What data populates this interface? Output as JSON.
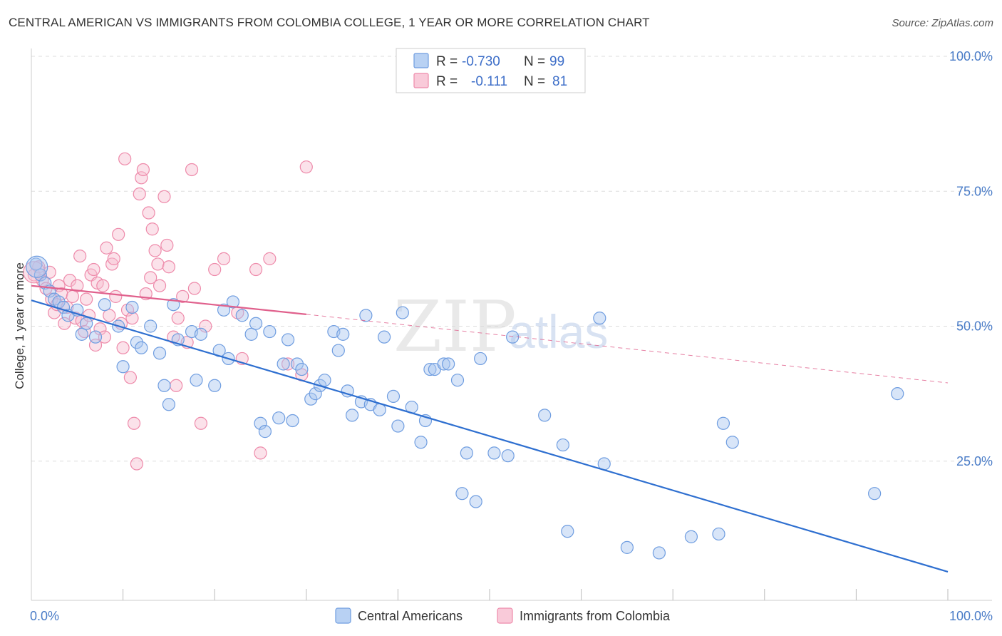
{
  "title": "CENTRAL AMERICAN VS IMMIGRANTS FROM COLOMBIA COLLEGE, 1 YEAR OR MORE CORRELATION CHART",
  "source": "Source: ZipAtlas.com",
  "watermark": {
    "zip": "ZIP",
    "atlas": "atlas"
  },
  "colors": {
    "blue": "#6f9de0",
    "blue_fill": "#a9c6f0",
    "blue_line": "#2e6fd0",
    "pink": "#ee8aaa",
    "pink_fill": "#f7bfd1",
    "pink_line": "#e0608c",
    "axis_label": "#4a7cc7",
    "grid": "#dddddd"
  },
  "legend_top": {
    "rows": [
      {
        "r_label": "R =",
        "r_value": "-0.730",
        "n_label": "N =",
        "n_value": "99",
        "series": "blue"
      },
      {
        "r_label": "R =",
        "r_value": "-0.111",
        "n_label": "N =",
        "n_value": "81",
        "series": "pink"
      }
    ]
  },
  "legend_bottom": [
    {
      "label": "Central Americans",
      "series": "blue"
    },
    {
      "label": "Immigrants from Colombia",
      "series": "pink"
    }
  ],
  "chart_data": {
    "type": "scatter",
    "title": "CENTRAL AMERICAN VS IMMIGRANTS FROM COLOMBIA COLLEGE, 1 YEAR OR MORE CORRELATION CHART",
    "xlabel": "",
    "ylabel": "College, 1 year or more",
    "xlim": [
      0,
      100
    ],
    "ylim": [
      0,
      105
    ],
    "x_tick_labels": [
      "0.0%",
      "100.0%"
    ],
    "y_tick_labels": [
      "25.0%",
      "50.0%",
      "75.0%",
      "100.0%"
    ],
    "y_ticks": [
      25,
      50,
      75,
      100
    ],
    "grid": true,
    "legend_position": "top-center",
    "series": [
      {
        "name": "Central Americans",
        "color": "blue",
        "r": -0.73,
        "n": 99,
        "trend": {
          "x": [
            0,
            100
          ],
          "y": [
            54.8,
            4.5
          ]
        },
        "points": [
          [
            0.5,
            61.5
          ],
          [
            1.0,
            59.5
          ],
          [
            1.5,
            58.0
          ],
          [
            2.0,
            56.5
          ],
          [
            2.5,
            55.0
          ],
          [
            3.0,
            54.5
          ],
          [
            3.5,
            53.5
          ],
          [
            4.0,
            52.0
          ],
          [
            5.0,
            53.0
          ],
          [
            5.5,
            48.5
          ],
          [
            6.0,
            50.5
          ],
          [
            7.0,
            48.0
          ],
          [
            8.0,
            54.0
          ],
          [
            9.5,
            50.0
          ],
          [
            10.0,
            42.5
          ],
          [
            11.0,
            53.5
          ],
          [
            11.5,
            47.0
          ],
          [
            12.0,
            46.0
          ],
          [
            13.0,
            50.0
          ],
          [
            14.0,
            45.0
          ],
          [
            14.5,
            39.0
          ],
          [
            15.0,
            35.5
          ],
          [
            15.5,
            54.0
          ],
          [
            16.0,
            47.5
          ],
          [
            17.5,
            49.0
          ],
          [
            18.0,
            40.0
          ],
          [
            18.5,
            48.5
          ],
          [
            20.0,
            39.0
          ],
          [
            20.5,
            45.5
          ],
          [
            21.0,
            53.0
          ],
          [
            21.5,
            44.0
          ],
          [
            22.0,
            54.5
          ],
          [
            23.0,
            52.0
          ],
          [
            24.0,
            48.5
          ],
          [
            24.5,
            50.5
          ],
          [
            25.0,
            32.0
          ],
          [
            25.5,
            30.5
          ],
          [
            26.0,
            49.0
          ],
          [
            27.0,
            33.0
          ],
          [
            27.5,
            43.0
          ],
          [
            28.0,
            47.5
          ],
          [
            28.5,
            32.5
          ],
          [
            29.0,
            43.0
          ],
          [
            29.5,
            42.0
          ],
          [
            30.5,
            36.5
          ],
          [
            31.0,
            37.5
          ],
          [
            31.5,
            39.0
          ],
          [
            32.0,
            40.0
          ],
          [
            33.0,
            49.0
          ],
          [
            33.5,
            45.5
          ],
          [
            34.0,
            48.5
          ],
          [
            34.5,
            38.0
          ],
          [
            35.0,
            33.5
          ],
          [
            36.0,
            36.0
          ],
          [
            36.5,
            52.0
          ],
          [
            37.0,
            35.5
          ],
          [
            38.0,
            34.5
          ],
          [
            38.5,
            48.0
          ],
          [
            39.5,
            37.0
          ],
          [
            40.0,
            31.5
          ],
          [
            40.5,
            52.5
          ],
          [
            41.5,
            35.0
          ],
          [
            42.5,
            28.5
          ],
          [
            43.0,
            32.5
          ],
          [
            43.5,
            42.0
          ],
          [
            44.0,
            42.0
          ],
          [
            45.0,
            43.0
          ],
          [
            45.5,
            43.0
          ],
          [
            46.5,
            40.0
          ],
          [
            47.0,
            19.0
          ],
          [
            47.5,
            26.5
          ],
          [
            48.5,
            17.5
          ],
          [
            49.0,
            44.0
          ],
          [
            50.5,
            26.5
          ],
          [
            52.0,
            26.0
          ],
          [
            52.5,
            48.0
          ],
          [
            56.0,
            33.5
          ],
          [
            58.0,
            28.0
          ],
          [
            58.5,
            12.0
          ],
          [
            62.0,
            51.5
          ],
          [
            62.5,
            24.5
          ],
          [
            65.0,
            9.0
          ],
          [
            68.5,
            8.0
          ],
          [
            72.0,
            11.0
          ],
          [
            75.0,
            11.5
          ],
          [
            75.5,
            32.0
          ],
          [
            76.5,
            28.5
          ],
          [
            92.0,
            19.0
          ],
          [
            94.5,
            37.5
          ]
        ],
        "big_points": [
          [
            0.6,
            61.0
          ]
        ]
      },
      {
        "name": "Immigrants from Colombia",
        "color": "pink",
        "r": -0.111,
        "n": 81,
        "trend": {
          "x": [
            0,
            30,
            100
          ],
          "y": [
            57.5,
            52.2,
            39.5
          ],
          "solid_until_x": 30
        },
        "points": [
          [
            0.3,
            59.5
          ],
          [
            0.8,
            61.0
          ],
          [
            1.2,
            58.5
          ],
          [
            1.6,
            57.0
          ],
          [
            2.0,
            60.0
          ],
          [
            2.2,
            55.0
          ],
          [
            2.5,
            52.5
          ],
          [
            2.8,
            54.0
          ],
          [
            3.0,
            57.5
          ],
          [
            3.3,
            56.0
          ],
          [
            3.6,
            50.5
          ],
          [
            3.9,
            53.5
          ],
          [
            4.2,
            58.5
          ],
          [
            4.5,
            55.5
          ],
          [
            4.8,
            51.5
          ],
          [
            5.0,
            57.5
          ],
          [
            5.3,
            63.0
          ],
          [
            5.5,
            51.0
          ],
          [
            5.8,
            49.0
          ],
          [
            6.0,
            55.0
          ],
          [
            6.3,
            52.0
          ],
          [
            6.5,
            59.5
          ],
          [
            6.8,
            60.5
          ],
          [
            7.0,
            46.5
          ],
          [
            7.2,
            58.0
          ],
          [
            7.5,
            49.5
          ],
          [
            7.8,
            57.5
          ],
          [
            8.0,
            48.0
          ],
          [
            8.2,
            64.5
          ],
          [
            8.5,
            52.0
          ],
          [
            8.8,
            61.5
          ],
          [
            9.0,
            62.5
          ],
          [
            9.2,
            55.5
          ],
          [
            9.5,
            67.0
          ],
          [
            9.8,
            50.5
          ],
          [
            10.0,
            46.0
          ],
          [
            10.2,
            81.0
          ],
          [
            10.5,
            53.0
          ],
          [
            10.8,
            40.5
          ],
          [
            11.0,
            51.5
          ],
          [
            11.2,
            32.0
          ],
          [
            11.5,
            24.5
          ],
          [
            11.8,
            74.5
          ],
          [
            12.0,
            77.5
          ],
          [
            12.2,
            79.0
          ],
          [
            12.5,
            56.0
          ],
          [
            12.8,
            71.0
          ],
          [
            13.0,
            59.0
          ],
          [
            13.2,
            68.0
          ],
          [
            13.5,
            64.0
          ],
          [
            13.8,
            61.5
          ],
          [
            14.0,
            57.5
          ],
          [
            14.5,
            74.0
          ],
          [
            14.8,
            65.0
          ],
          [
            15.0,
            61.0
          ],
          [
            15.5,
            48.0
          ],
          [
            15.8,
            39.0
          ],
          [
            16.0,
            51.5
          ],
          [
            16.5,
            55.5
          ],
          [
            17.0,
            47.0
          ],
          [
            17.5,
            79.0
          ],
          [
            17.8,
            57.0
          ],
          [
            18.5,
            32.0
          ],
          [
            19.0,
            50.0
          ],
          [
            20.0,
            60.5
          ],
          [
            21.0,
            62.5
          ],
          [
            22.5,
            52.5
          ],
          [
            23.0,
            44.0
          ],
          [
            24.5,
            60.5
          ],
          [
            25.0,
            26.5
          ],
          [
            26.0,
            62.5
          ],
          [
            28.0,
            43.0
          ],
          [
            29.5,
            41.0
          ],
          [
            30.0,
            79.5
          ]
        ],
        "big_points": [
          [
            0.3,
            60.0
          ]
        ]
      }
    ]
  }
}
